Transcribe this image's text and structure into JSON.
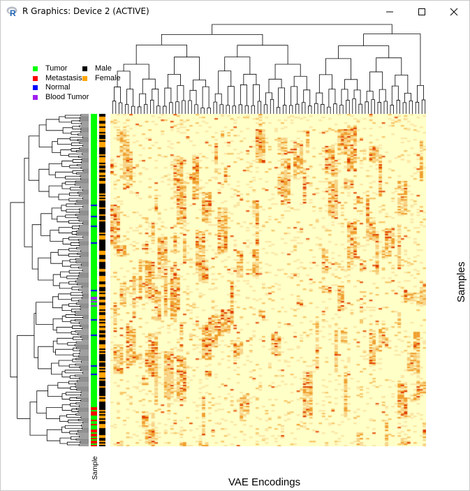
{
  "window": {
    "title": "R Graphics: Device 2 (ACTIVE)",
    "icon": "r-logo-icon",
    "controls": [
      "minimize-icon",
      "maximize-icon",
      "close-icon"
    ]
  },
  "legend": {
    "sample_type": [
      {
        "label": "Tumor",
        "color": "#00ff00"
      },
      {
        "label": "Metastasis",
        "color": "#ff0000"
      },
      {
        "label": "Normal",
        "color": "#0000ff"
      },
      {
        "label": "Blood Tumor",
        "color": "#a020f0"
      }
    ],
    "sex": [
      {
        "label": "Male",
        "color": "#000000"
      },
      {
        "label": "Female",
        "color": "#ffa500"
      }
    ]
  },
  "plot": {
    "x_label": "VAE Encodings",
    "y_label": "Samples",
    "sidebar_label": "Sample",
    "heatmap_colors": {
      "low": "#ffffc8",
      "mid": "#f5a623",
      "high": "#e04000"
    }
  }
}
